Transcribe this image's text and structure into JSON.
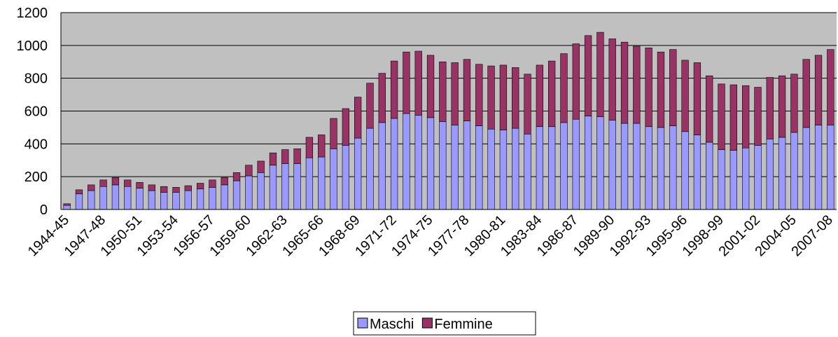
{
  "chart_data": {
    "type": "bar",
    "stacked": true,
    "categories": [
      "1944-45",
      null,
      null,
      "1947-48",
      null,
      null,
      "1950-51",
      null,
      null,
      "1953-54",
      null,
      null,
      "1956-57",
      null,
      null,
      "1959-60",
      null,
      null,
      "1962-63",
      null,
      null,
      "1965-66",
      null,
      null,
      "1968-69",
      null,
      null,
      "1971-72",
      null,
      null,
      "1974-75",
      null,
      null,
      "1977-78",
      null,
      null,
      "1980-81",
      null,
      null,
      "1983-84",
      null,
      null,
      "1986-87",
      null,
      null,
      "1989-90",
      null,
      null,
      "1992-93",
      null,
      null,
      "1995-96",
      null,
      null,
      "1998-99",
      null,
      null,
      "2001-02",
      null,
      null,
      "2004-05",
      null,
      null,
      "2007-08"
    ],
    "series": [
      {
        "name": "Maschi",
        "color": "#9999ff",
        "values": [
          25,
          95,
          115,
          140,
          150,
          140,
          130,
          115,
          105,
          105,
          115,
          125,
          135,
          150,
          175,
          205,
          225,
          270,
          280,
          280,
          315,
          320,
          370,
          390,
          435,
          495,
          530,
          555,
          585,
          575,
          560,
          535,
          515,
          540,
          510,
          490,
          485,
          495,
          460,
          505,
          505,
          530,
          550,
          570,
          565,
          545,
          525,
          525,
          505,
          500,
          510,
          475,
          455,
          410,
          365,
          360,
          375,
          390,
          430,
          440,
          470,
          500,
          515,
          515
        ]
      },
      {
        "name": "Femmine",
        "color": "#993366",
        "values": [
          10,
          25,
          35,
          40,
          45,
          40,
          35,
          35,
          35,
          30,
          30,
          35,
          45,
          45,
          50,
          65,
          70,
          75,
          85,
          90,
          125,
          135,
          185,
          225,
          250,
          275,
          300,
          350,
          375,
          390,
          380,
          365,
          380,
          375,
          375,
          385,
          395,
          370,
          365,
          375,
          400,
          420,
          460,
          490,
          515,
          495,
          495,
          470,
          480,
          460,
          465,
          435,
          440,
          405,
          400,
          400,
          380,
          355,
          375,
          375,
          355,
          415,
          425,
          460
        ]
      }
    ],
    "ylim": [
      0,
      1200
    ],
    "yticks": [
      0,
      200,
      400,
      600,
      800,
      1000,
      1200
    ],
    "grid": true,
    "legend": "bottom"
  }
}
